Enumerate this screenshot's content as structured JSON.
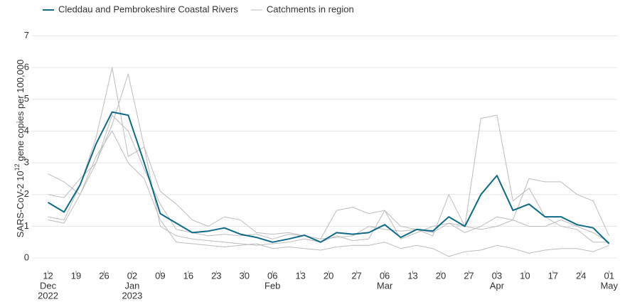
{
  "chart_data": {
    "type": "line",
    "ylabel": [
      "SARS-CoV-2  10",
      "12",
      " gene copies per 100,000"
    ],
    "x": [
      "2022-12-12",
      "2022-12-16",
      "2022-12-20",
      "2022-12-24",
      "2022-12-28",
      "2023-01-01",
      "2023-01-05",
      "2023-01-09",
      "2023-01-13",
      "2023-01-17",
      "2023-01-21",
      "2023-01-25",
      "2023-01-29",
      "2023-02-02",
      "2023-02-06",
      "2023-02-10",
      "2023-02-14",
      "2023-02-18",
      "2023-02-22",
      "2023-02-26",
      "2023-03-02",
      "2023-03-06",
      "2023-03-10",
      "2023-03-14",
      "2023-03-18",
      "2023-03-22",
      "2023-03-26",
      "2023-03-30",
      "2023-04-03",
      "2023-04-07",
      "2023-04-11",
      "2023-04-15",
      "2023-04-19",
      "2023-04-23",
      "2023-04-27",
      "2023-05-01"
    ],
    "series": [
      {
        "name": "Cleddau and Pembrokeshire Coastal Rivers",
        "color": "#0e6a87",
        "width": 2,
        "values": [
          1.75,
          1.45,
          2.3,
          3.6,
          4.6,
          4.5,
          3.0,
          1.4,
          1.1,
          0.8,
          0.85,
          0.95,
          0.75,
          0.65,
          0.5,
          0.6,
          0.72,
          0.5,
          0.8,
          0.75,
          0.8,
          1.05,
          0.65,
          0.9,
          0.85,
          1.3,
          1.0,
          2.0,
          2.6,
          1.5,
          1.7,
          1.3,
          1.3,
          1.05,
          0.95,
          0.45
        ]
      },
      {
        "name": "Catchments in region",
        "color": "#bdbdbd",
        "width": 1,
        "values": [
          1.3,
          1.2,
          2.3,
          3.8,
          6.0,
          3.2,
          3.5,
          1.0,
          0.7,
          0.6,
          0.55,
          0.5,
          0.45,
          0.4,
          0.45,
          0.5,
          0.6,
          0.5,
          0.7,
          0.55,
          0.6,
          1.5,
          0.6,
          0.8,
          1.0,
          1.1,
          1.0,
          4.4,
          4.5,
          1.8,
          2.2,
          1.3,
          1.0,
          0.9,
          0.5,
          0.5
        ]
      },
      {
        "name": "Catchments in region",
        "color": "#bdbdbd",
        "width": 1,
        "values": [
          2.65,
          2.4,
          2.0,
          3.0,
          4.2,
          5.8,
          3.5,
          2.1,
          1.7,
          1.2,
          1.0,
          1.3,
          1.2,
          0.8,
          0.75,
          0.8,
          0.7,
          0.6,
          1.5,
          1.6,
          1.4,
          1.5,
          1.0,
          0.9,
          0.7,
          2.0,
          1.0,
          0.9,
          1.0,
          1.2,
          2.5,
          2.4,
          2.4,
          2.0,
          1.8,
          0.7
        ]
      },
      {
        "name": "Catchments in region",
        "color": "#bdbdbd",
        "width": 1,
        "values": [
          1.2,
          1.1,
          2.0,
          3.2,
          4.0,
          3.0,
          2.5,
          1.2,
          0.5,
          0.45,
          0.4,
          0.35,
          0.4,
          0.45,
          0.3,
          0.35,
          0.3,
          0.25,
          0.35,
          0.4,
          0.4,
          0.5,
          0.3,
          0.4,
          0.3,
          0.05,
          0.2,
          0.25,
          0.4,
          0.3,
          0.15,
          0.25,
          0.3,
          0.3,
          0.2,
          0.4
        ]
      },
      {
        "name": "Catchments in region",
        "color": "#bdbdbd",
        "width": 1,
        "values": [
          2.0,
          1.9,
          2.5,
          3.0,
          4.5,
          4.0,
          2.8,
          1.7,
          0.9,
          0.8,
          0.7,
          0.75,
          0.7,
          0.75,
          0.6,
          0.75,
          0.7,
          0.6,
          0.65,
          0.7,
          1.0,
          0.9,
          0.85,
          0.9,
          0.8,
          1.1,
          0.8,
          1.0,
          1.3,
          1.2,
          1.0,
          1.0,
          1.2,
          1.0,
          0.8,
          0.5
        ]
      }
    ],
    "xlim": [
      "2022-12-08",
      "2023-05-03"
    ],
    "xticks": [
      {
        "value": "2022-12-12",
        "label": [
          "12",
          "Dec",
          "2022"
        ]
      },
      {
        "value": "2022-12-19",
        "label": [
          "19"
        ]
      },
      {
        "value": "2022-12-26",
        "label": [
          "26"
        ]
      },
      {
        "value": "2023-01-02",
        "label": [
          "02",
          "Jan",
          "2023"
        ]
      },
      {
        "value": "2023-01-09",
        "label": [
          "09"
        ]
      },
      {
        "value": "2023-01-16",
        "label": [
          "16"
        ]
      },
      {
        "value": "2023-01-23",
        "label": [
          "23"
        ]
      },
      {
        "value": "2023-01-30",
        "label": [
          "30"
        ]
      },
      {
        "value": "2023-02-06",
        "label": [
          "06",
          "Feb"
        ]
      },
      {
        "value": "2023-02-13",
        "label": [
          "13"
        ]
      },
      {
        "value": "2023-02-20",
        "label": [
          "20"
        ]
      },
      {
        "value": "2023-02-27",
        "label": [
          "27"
        ]
      },
      {
        "value": "2023-03-06",
        "label": [
          "06",
          "Mar"
        ]
      },
      {
        "value": "2023-03-13",
        "label": [
          "13"
        ]
      },
      {
        "value": "2023-03-20",
        "label": [
          "20"
        ]
      },
      {
        "value": "2023-03-27",
        "label": [
          "27"
        ]
      },
      {
        "value": "2023-04-03",
        "label": [
          "03",
          "Apr"
        ]
      },
      {
        "value": "2023-04-10",
        "label": [
          "10"
        ]
      },
      {
        "value": "2023-04-17",
        "label": [
          "17"
        ]
      },
      {
        "value": "2023-04-24",
        "label": [
          "24"
        ]
      },
      {
        "value": "2023-05-01",
        "label": [
          "01",
          "May"
        ]
      }
    ],
    "ylim": [
      -0.4,
      7.3
    ],
    "yticks": [
      0,
      1,
      2,
      3,
      4,
      5,
      6,
      7
    ],
    "grid": true,
    "legend": "top-left"
  }
}
